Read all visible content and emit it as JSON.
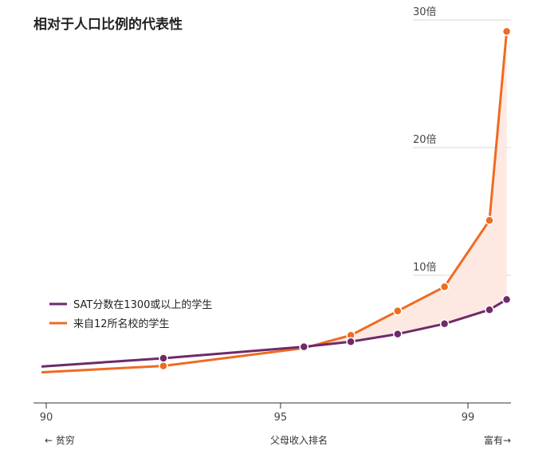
{
  "chart_data": {
    "type": "line",
    "title": "相对于人口比例的代表性",
    "xlabel": "父母收入排名",
    "x_left_label": "← 贫穷",
    "x_right_label": "富有→",
    "x_ticks": [
      {
        "value": 90,
        "label": "90"
      },
      {
        "value": 95,
        "label": "95"
      },
      {
        "value": 99,
        "label": "99"
      }
    ],
    "y_ticks": [
      {
        "value": 10,
        "label": "10倍"
      },
      {
        "value": 20,
        "label": "20倍"
      },
      {
        "value": 30,
        "label": "30倍"
      }
    ],
    "series": [
      {
        "name": "SAT分数在1300或以上的学生",
        "color": "#6e2a6b",
        "points": [
          {
            "x": 89.9,
            "y": 2.85
          },
          {
            "x": 92.5,
            "y": 3.5
          },
          {
            "x": 95.5,
            "y": 4.4
          },
          {
            "x": 96.5,
            "y": 4.8
          },
          {
            "x": 97.5,
            "y": 5.4
          },
          {
            "x": 98.5,
            "y": 6.2
          },
          {
            "x": 99.5,
            "y": 7.3
          },
          {
            "x": 99.9,
            "y": 8.1
          }
        ]
      },
      {
        "name": "来自12所名校的学生",
        "color": "#ef6b22",
        "points": [
          {
            "x": 89.9,
            "y": 2.4
          },
          {
            "x": 92.5,
            "y": 2.9
          },
          {
            "x": 95.5,
            "y": 4.3
          },
          {
            "x": 96.5,
            "y": 5.3
          },
          {
            "x": 97.5,
            "y": 7.2
          },
          {
            "x": 98.5,
            "y": 9.1
          },
          {
            "x": 99.5,
            "y": 14.3
          },
          {
            "x": 99.9,
            "y": 29.1
          }
        ]
      }
    ],
    "fill_color": "#fde9e2",
    "ylim": [
      0,
      30
    ]
  }
}
